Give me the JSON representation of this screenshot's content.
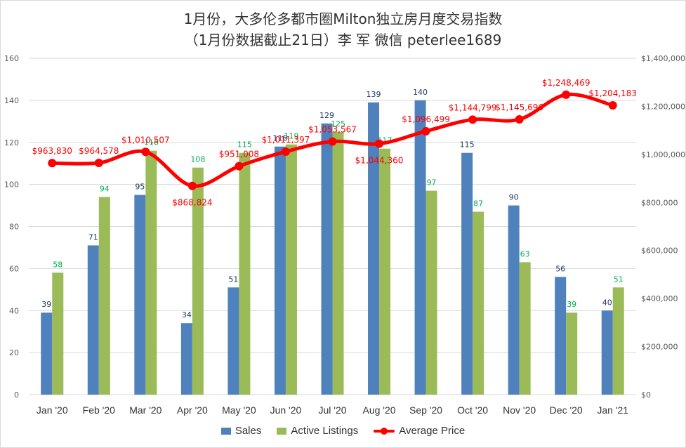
{
  "title_line1": "1月份，大多伦多都市圈Milton独立房月度交易指数",
  "title_line2": "（1月份数据截止21日）李 军  微信  peterlee1689",
  "chart_data": {
    "type": "bar",
    "categories": [
      "Jan '20",
      "Feb '20",
      "Mar '20",
      "Apr '20",
      "May '20",
      "Jun '20",
      "Jul '20",
      "Aug '20",
      "Sep '20",
      "Oct '20",
      "Nov '20",
      "Dec '20",
      "Jan '21"
    ],
    "series": [
      {
        "name": "Sales",
        "type": "bar",
        "axis": "left",
        "color": "#4f81bd",
        "label_color": "#1f3864",
        "values": [
          39,
          71,
          95,
          34,
          51,
          118,
          129,
          139,
          140,
          115,
          90,
          56,
          40
        ]
      },
      {
        "name": "Active Listings",
        "type": "bar",
        "axis": "left",
        "color": "#9bbb59",
        "label_color": "#00b050",
        "values": [
          58,
          94,
          116,
          108,
          115,
          119,
          125,
          117,
          97,
          87,
          63,
          39,
          51
        ]
      },
      {
        "name": "Average Price",
        "type": "line",
        "axis": "right",
        "color": "#ff0000",
        "label_color": "#ff0000",
        "values": [
          963830,
          964578,
          1010507,
          868824,
          951008,
          1011397,
          1053567,
          1044360,
          1096499,
          1144799,
          1145696,
          1248469,
          1204183
        ],
        "labels": [
          "$963,830",
          "$964,578",
          "$1,010,507",
          "$868,824",
          "$951,008",
          "$1,011,397",
          "$1,053,567",
          "$1,044,360",
          "$1,096,499",
          "$1,144,799",
          "$1,145,696",
          "$1,248,469",
          "$1,204,183"
        ]
      }
    ],
    "y_left": {
      "ylim": [
        0,
        160
      ],
      "ticks": [
        "0",
        "20",
        "40",
        "60",
        "80",
        "100",
        "120",
        "140",
        "160"
      ]
    },
    "y_right": {
      "ylim": [
        0,
        1400000
      ],
      "ticks": [
        "$0",
        "$200,000",
        "$400,000",
        "$600,000",
        "$800,000",
        "$1,000,000",
        "$1,200,000",
        "$1,400,000"
      ]
    },
    "grid": true,
    "legend": "bottom"
  }
}
